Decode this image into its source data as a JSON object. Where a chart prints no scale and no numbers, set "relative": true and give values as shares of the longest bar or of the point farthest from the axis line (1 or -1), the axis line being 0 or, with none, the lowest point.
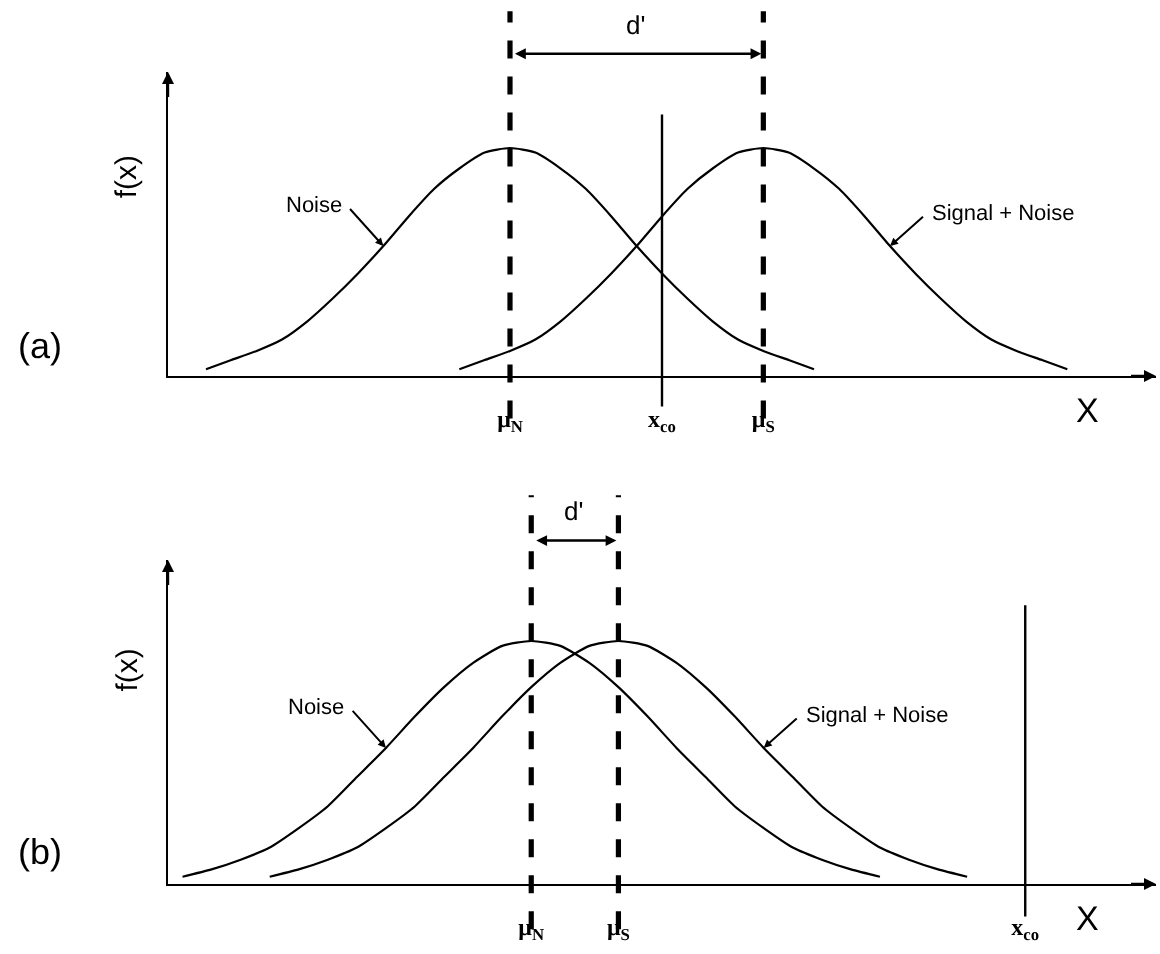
{
  "chart_data": [
    {
      "type": "line",
      "title": "(a)",
      "xlabel": "X",
      "ylabel": "f(x)",
      "relative": true,
      "line_style": "solid",
      "categories": [
        null,
        null,
        null,
        null,
        null,
        null,
        null,
        null,
        null,
        null,
        null,
        null,
        null,
        "μ$_{N}$",
        null,
        null,
        null,
        null,
        null,
        "x$_{co}$",
        null,
        null,
        null,
        "μ$_{S}$",
        null,
        null,
        null,
        null,
        null,
        null,
        null,
        null,
        null,
        null,
        null,
        null,
        null,
        null,
        null
      ],
      "series": [
        {
          "name": "Noise",
          "color": "#000000",
          "values": [
            null,
            0.03,
            0.07,
            0.11,
            0.16,
            0.24,
            0.34,
            0.45,
            0.57,
            0.7,
            0.82,
            0.91,
            0.98,
            1,
            0.98,
            0.91,
            0.82,
            0.7,
            0.57,
            0.45,
            0.34,
            0.24,
            0.16,
            0.11,
            0.07,
            0.03,
            null,
            null,
            null,
            null,
            null,
            null,
            null,
            null,
            null,
            null,
            null,
            null,
            null
          ]
        },
        {
          "name": "Signal + Noise",
          "color": "#000000",
          "values": [
            null,
            null,
            null,
            null,
            null,
            null,
            null,
            null,
            null,
            null,
            null,
            0.03,
            0.07,
            0.11,
            0.16,
            0.24,
            0.34,
            0.45,
            0.57,
            0.7,
            0.82,
            0.91,
            0.98,
            1,
            0.98,
            0.91,
            0.82,
            0.7,
            0.57,
            0.45,
            0.34,
            0.24,
            0.16,
            0.11,
            0.07,
            0.03,
            null,
            null,
            null
          ]
        }
      ],
      "ref_lines": [
        {
          "axis": "x",
          "value": "μ$_{N}$",
          "line_style": "dashed",
          "color": "#000000"
        },
        {
          "axis": "x",
          "value": "μ$_{S}$",
          "line_style": "dashed",
          "color": "#000000"
        },
        {
          "axis": "x",
          "value": "x$_{co}$",
          "line_style": "solid",
          "color": "#000000"
        }
      ],
      "annotations": [
        "d'"
      ]
    },
    {
      "type": "line",
      "title": "(b)",
      "xlabel": "X",
      "ylabel": "f(x)",
      "relative": true,
      "line_style": "solid",
      "categories": [
        null,
        null,
        null,
        null,
        null,
        null,
        null,
        null,
        null,
        null,
        null,
        null,
        "μ$_{N}$",
        null,
        null,
        "μ$_{S}$",
        null,
        null,
        null,
        null,
        null,
        null,
        null,
        null,
        null,
        null,
        null,
        null,
        null,
        "x$_{co}$",
        null,
        null,
        null,
        null
      ],
      "series": [
        {
          "name": "Noise",
          "color": "#000000",
          "values": [
            0.03,
            0.06,
            0.1,
            0.15,
            0.23,
            0.32,
            0.44,
            0.56,
            0.69,
            0.81,
            0.91,
            0.98,
            1,
            0.98,
            0.91,
            0.81,
            0.69,
            0.56,
            0.44,
            0.32,
            0.23,
            0.15,
            0.1,
            0.06,
            0.03,
            null,
            null,
            null,
            null,
            null,
            null,
            null,
            null,
            null
          ]
        },
        {
          "name": "Signal + Noise",
          "color": "#000000",
          "values": [
            null,
            null,
            null,
            0.03,
            0.06,
            0.1,
            0.15,
            0.23,
            0.32,
            0.44,
            0.56,
            0.69,
            0.81,
            0.91,
            0.98,
            1,
            0.98,
            0.91,
            0.81,
            0.69,
            0.56,
            0.44,
            0.32,
            0.23,
            0.15,
            0.1,
            0.06,
            0.03,
            null,
            null,
            null,
            null,
            null,
            null
          ]
        }
      ],
      "ref_lines": [
        {
          "axis": "x",
          "value": "μ$_{N}$",
          "line_style": "dashed",
          "color": "#000000"
        },
        {
          "axis": "x",
          "value": "μ$_{S}$",
          "line_style": "dashed",
          "color": "#000000"
        },
        {
          "axis": "x",
          "value": "x$_{co}$",
          "line_style": "solid",
          "color": "#000000"
        }
      ],
      "annotations": [
        "d'"
      ]
    }
  ]
}
